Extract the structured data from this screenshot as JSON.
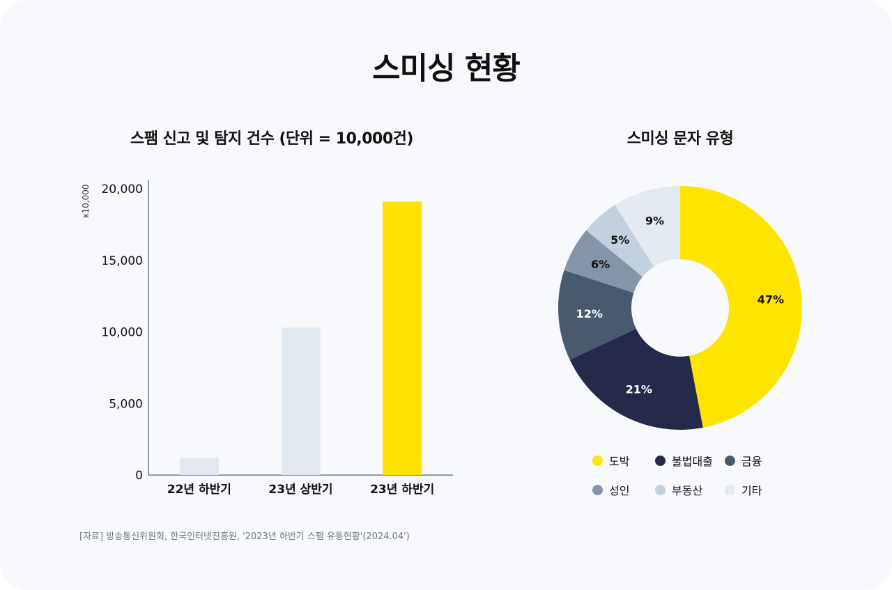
{
  "page": {
    "title": "스미싱 현황"
  },
  "source": "[자료] 방송통신위원회, 한국인터넷진흥원, '2023년 하반기 스팸 유통현황'(2024.04')",
  "chart_data": [
    {
      "type": "bar",
      "title": "스팸 신고 및 탐지 건수 (단위 = 10,000건)",
      "unit_label": "x10,000",
      "categories": [
        "22년 하반기",
        "23년 상반기",
        "23년 하반기"
      ],
      "values": [
        1200,
        10300,
        19100
      ],
      "bar_colors": [
        "#e2e8ef",
        "#e2e8ef",
        "#ffe200"
      ],
      "ylim": [
        0,
        20000
      ],
      "yticks": [
        0,
        5000,
        10000,
        15000,
        20000
      ],
      "ytick_labels": [
        "0",
        "5,000",
        "10,000",
        "15,000",
        "20,000"
      ],
      "grid": false
    },
    {
      "type": "pie",
      "style": "donut",
      "title": "스미싱 문자 유형",
      "labels": [
        "도박",
        "불법대출",
        "금융",
        "성인",
        "부동산",
        "기타"
      ],
      "values": [
        47,
        21,
        12,
        6,
        5,
        9
      ],
      "value_labels": [
        "47%",
        "21%",
        "12%",
        "6%",
        "5%",
        "9%"
      ],
      "colors": [
        "#ffe400",
        "#262a4a",
        "#4a5a6e",
        "#8595a8",
        "#c3d0de",
        "#e3e9f0"
      ],
      "label_colors": [
        "#111111",
        "#ffffff",
        "#ffffff",
        "#111111",
        "#111111",
        "#111111"
      ],
      "legend_position": "bottom"
    }
  ]
}
